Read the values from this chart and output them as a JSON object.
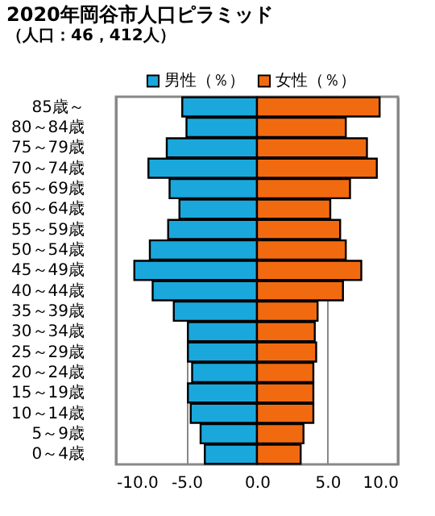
{
  "chart_data": {
    "type": "bar",
    "orientation": "horizontal",
    "stacked": true,
    "title": "2020年岡谷市人口ピラミッド",
    "subtitle": "（人口：46，412人）",
    "categories": [
      "85歳～",
      "80～84歳",
      "75～79歳",
      "70～74歳",
      "65～69歳",
      "60～64歳",
      "55～59歳",
      "50～54歳",
      "45～49歳",
      "40～44歳",
      "35～39歳",
      "30～34歳",
      "25～29歳",
      "20～24歳",
      "15～19歳",
      "10～14歳",
      "5～9歳",
      "0～4歳"
    ],
    "series": [
      {
        "name": "男性（％）",
        "color": "#1aa8dc",
        "values": [
          -5.3,
          -5.0,
          -6.4,
          -7.7,
          -6.2,
          -5.5,
          -6.3,
          -7.6,
          -8.7,
          -7.4,
          -5.9,
          -4.9,
          -4.9,
          -4.6,
          -4.9,
          -4.7,
          -4.0,
          -3.7
        ]
      },
      {
        "name": "女性（％）",
        "color": "#f26a10",
        "values": [
          8.7,
          6.3,
          7.8,
          8.5,
          6.6,
          5.2,
          5.9,
          6.3,
          7.4,
          6.1,
          4.3,
          4.1,
          4.2,
          4.0,
          4.0,
          4.0,
          3.3,
          3.1
        ]
      }
    ],
    "xlim": [
      -10,
      10
    ],
    "xticks": [
      {
        "value": -10,
        "label": "-10.0"
      },
      {
        "value": -5,
        "label": "-5.0"
      },
      {
        "value": 0,
        "label": "0.0"
      },
      {
        "value": 5,
        "label": "5.0"
      },
      {
        "value": 10,
        "label": "10.0"
      }
    ],
    "grid": "x",
    "legend": "top right"
  }
}
